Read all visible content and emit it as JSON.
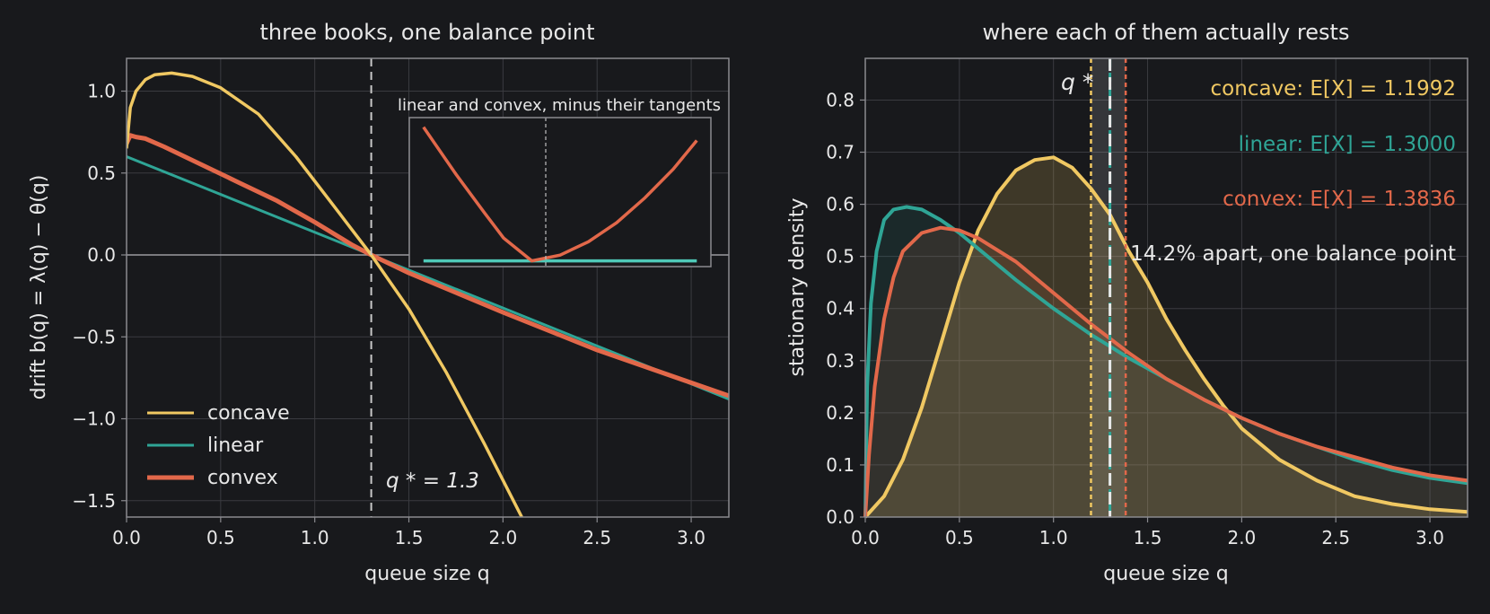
{
  "colors": {
    "background": "#18191c",
    "concave": "#f0c862",
    "linear": "#2fa596",
    "convex": "#e2684a",
    "inset_linear": "#4fc9b8",
    "qstar": "#e8e8e8"
  },
  "chart_data": [
    {
      "type": "line",
      "title": "three books, one balance point",
      "xlabel": "queue size q",
      "ylabel": "drift  b(q) = λ(q) − θ(q)",
      "xlim": [
        0,
        3.2
      ],
      "ylim": [
        -1.6,
        1.2
      ],
      "xticks": [
        "0.0",
        "0.5",
        "1.0",
        "1.5",
        "2.0",
        "2.5",
        "3.0"
      ],
      "yticks": [
        "−1.5",
        "−1.0",
        "−0.5",
        "0.0",
        "0.5",
        "1.0"
      ],
      "grid": true,
      "legend_position": "lower-left",
      "series": [
        {
          "name": "concave",
          "x": [
            0,
            0.02,
            0.05,
            0.1,
            0.15,
            0.24,
            0.35,
            0.5,
            0.7,
            0.9,
            1.1,
            1.3,
            1.5,
            1.7,
            1.9,
            2.1
          ],
          "y": [
            0.65,
            0.9,
            1.0,
            1.07,
            1.1,
            1.11,
            1.09,
            1.02,
            0.86,
            0.6,
            0.3,
            0.0,
            -0.33,
            -0.72,
            -1.15,
            -1.6
          ]
        },
        {
          "name": "linear",
          "x": [
            0,
            1.3,
            3.2
          ],
          "y": [
            0.6,
            0.0,
            -0.88
          ]
        },
        {
          "name": "convex",
          "x": [
            0,
            0.02,
            0.05,
            0.1,
            0.2,
            0.4,
            0.6,
            0.8,
            1.0,
            1.2,
            1.3,
            1.5,
            2.0,
            2.5,
            3.0,
            3.2
          ],
          "y": [
            0.68,
            0.73,
            0.72,
            0.71,
            0.66,
            0.55,
            0.44,
            0.33,
            0.2,
            0.06,
            0.0,
            -0.11,
            -0.35,
            -0.58,
            -0.78,
            -0.86
          ]
        }
      ],
      "annotations": {
        "qstar_label": "q * = 1.3",
        "qstar_value": 1.3
      },
      "inset": {
        "title": "linear and convex, minus their tangents",
        "xlim": [
          0,
          3.2
        ],
        "ylim": [
          -0.03,
          0.75
        ],
        "series": [
          {
            "name": "linear",
            "x": [
              0.15,
              3.05
            ],
            "y": [
              0,
              0
            ]
          },
          {
            "name": "convex",
            "x": [
              0.15,
              0.5,
              0.8,
              1.0,
              1.3,
              1.6,
              1.9,
              2.2,
              2.5,
              2.8,
              3.05
            ],
            "y": [
              0.7,
              0.45,
              0.25,
              0.12,
              0.0,
              0.03,
              0.1,
              0.2,
              0.33,
              0.48,
              0.63
            ]
          }
        ]
      }
    },
    {
      "type": "area",
      "title": "where each of them actually rests",
      "xlabel": "queue size q",
      "ylabel": "stationary density",
      "xlim": [
        0,
        3.2
      ],
      "ylim": [
        0,
        0.88
      ],
      "xticks": [
        "0.0",
        "0.5",
        "1.0",
        "1.5",
        "2.0",
        "2.5",
        "3.0"
      ],
      "yticks": [
        "0.0",
        "0.1",
        "0.2",
        "0.3",
        "0.4",
        "0.5",
        "0.6",
        "0.7",
        "0.8"
      ],
      "grid": true,
      "series": [
        {
          "name": "concave",
          "x": [
            0,
            0.1,
            0.2,
            0.3,
            0.4,
            0.5,
            0.6,
            0.7,
            0.8,
            0.9,
            1.0,
            1.1,
            1.2,
            1.3,
            1.4,
            1.5,
            1.6,
            1.7,
            1.8,
            1.9,
            2.0,
            2.2,
            2.4,
            2.6,
            2.8,
            3.0,
            3.2
          ],
          "y": [
            0.0,
            0.04,
            0.11,
            0.21,
            0.33,
            0.45,
            0.55,
            0.62,
            0.665,
            0.685,
            0.69,
            0.67,
            0.63,
            0.58,
            0.51,
            0.45,
            0.38,
            0.32,
            0.265,
            0.215,
            0.17,
            0.11,
            0.07,
            0.04,
            0.025,
            0.015,
            0.01
          ]
        },
        {
          "name": "linear",
          "x": [
            0,
            0.01,
            0.03,
            0.06,
            0.1,
            0.15,
            0.22,
            0.3,
            0.4,
            0.5,
            0.6,
            0.8,
            1.0,
            1.2,
            1.4,
            1.6,
            1.8,
            2.0,
            2.2,
            2.4,
            2.6,
            2.8,
            3.0,
            3.2
          ],
          "y": [
            0.0,
            0.25,
            0.41,
            0.51,
            0.57,
            0.59,
            0.595,
            0.59,
            0.57,
            0.545,
            0.515,
            0.455,
            0.4,
            0.35,
            0.305,
            0.265,
            0.225,
            0.19,
            0.16,
            0.135,
            0.11,
            0.09,
            0.075,
            0.065
          ]
        },
        {
          "name": "convex",
          "x": [
            0,
            0.02,
            0.05,
            0.1,
            0.15,
            0.2,
            0.3,
            0.4,
            0.5,
            0.6,
            0.8,
            1.0,
            1.2,
            1.4,
            1.6,
            1.8,
            2.0,
            2.2,
            2.4,
            2.6,
            2.8,
            3.0,
            3.2
          ],
          "y": [
            0.0,
            0.12,
            0.25,
            0.38,
            0.46,
            0.51,
            0.545,
            0.555,
            0.55,
            0.535,
            0.49,
            0.43,
            0.37,
            0.315,
            0.265,
            0.225,
            0.19,
            0.16,
            0.135,
            0.115,
            0.095,
            0.08,
            0.07
          ]
        }
      ],
      "means": [
        {
          "name": "concave",
          "value": 1.1992,
          "label": "concave:  E[X] = 1.1992"
        },
        {
          "name": "linear",
          "value": 1.3,
          "label": "linear:  E[X] = 1.3000"
        },
        {
          "name": "convex",
          "value": 1.3836,
          "label": "convex:  E[X] = 1.3836"
        }
      ],
      "annotations": {
        "qstar_label": "q *",
        "qstar_value": 1.3,
        "spread_label": "14.2% apart, one balance point"
      }
    }
  ]
}
